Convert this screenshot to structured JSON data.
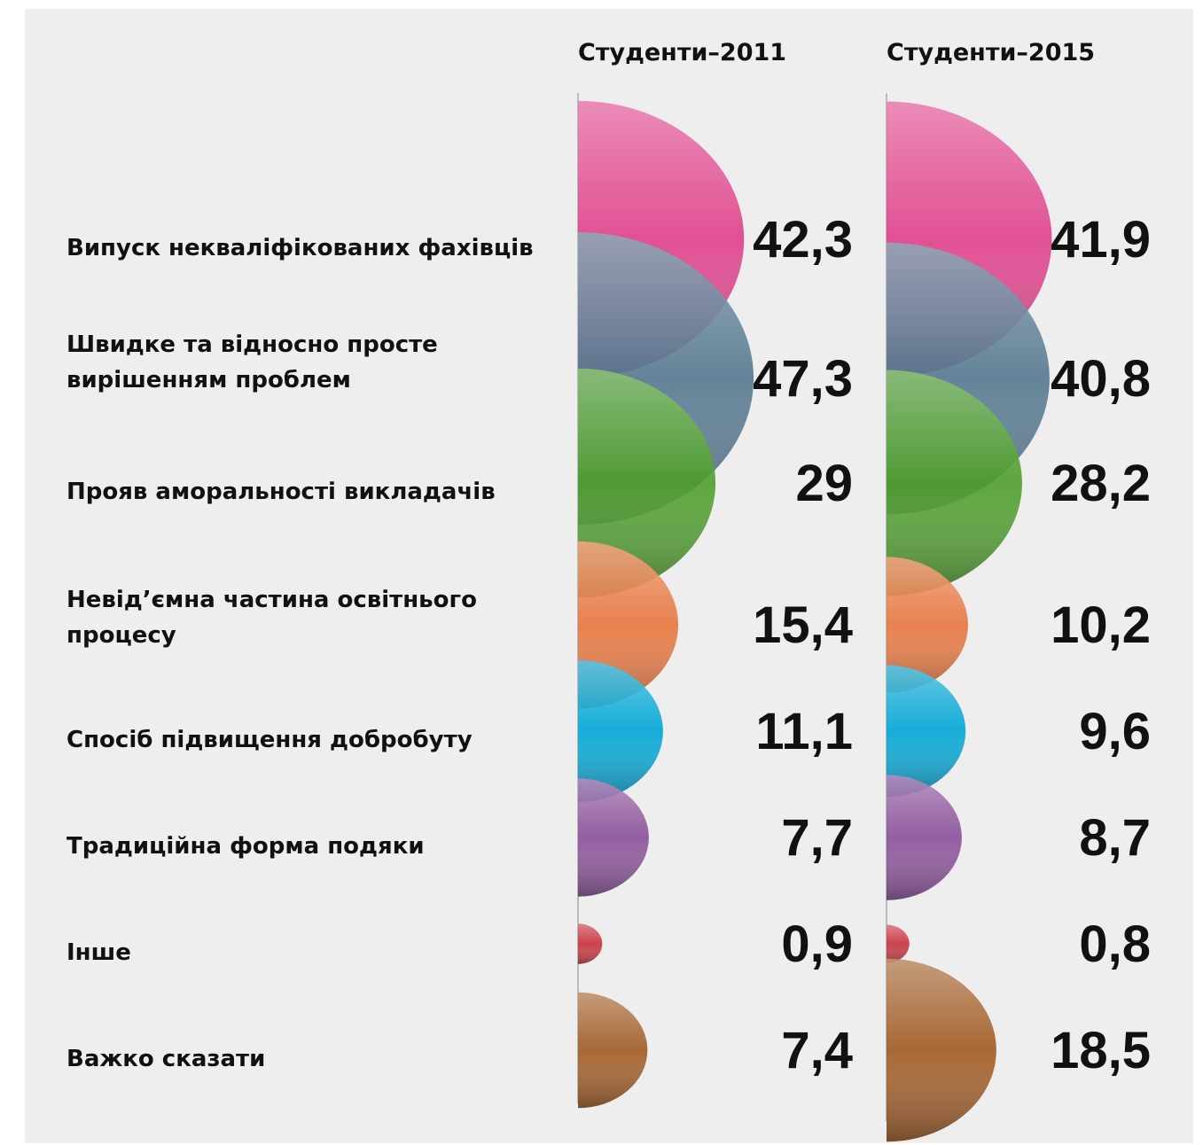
{
  "chart_data": {
    "type": "half-bubble",
    "categories": [
      "Випуск некваліфікованих фахівців",
      [
        "Швидке та відносно просте",
        "вирішенням проблем"
      ],
      "Прояв аморальності викладачів",
      [
        "Невід’ємна частина освітнього",
        "процесу"
      ],
      "Спосіб підвищення добробуту",
      "Традиційна форма подяки",
      "Інше",
      "Важко сказати"
    ],
    "colors": [
      "#e0408a",
      "#567890",
      "#4e9e2c",
      "#e8763e",
      "#00a6d6",
      "#8a4f9a",
      "#c8303e",
      "#a05a22"
    ],
    "series": [
      {
        "name": "Студенти–2011",
        "values": [
          42.3,
          47.3,
          29,
          15.4,
          11.1,
          7.7,
          0.9,
          7.4
        ],
        "value_labels": [
          "42,3",
          "47,3",
          "29",
          "15,4",
          "11,1",
          "7,7",
          "0,9",
          "7,4"
        ]
      },
      {
        "name": "Студенти–2015",
        "values": [
          41.9,
          40.8,
          28.2,
          10.2,
          9.6,
          8.7,
          0.8,
          18.5
        ],
        "value_labels": [
          "41,9",
          "40,8",
          "28,2",
          "10,2",
          "9,6",
          "8,7",
          "0,8",
          "18,5"
        ]
      }
    ]
  }
}
